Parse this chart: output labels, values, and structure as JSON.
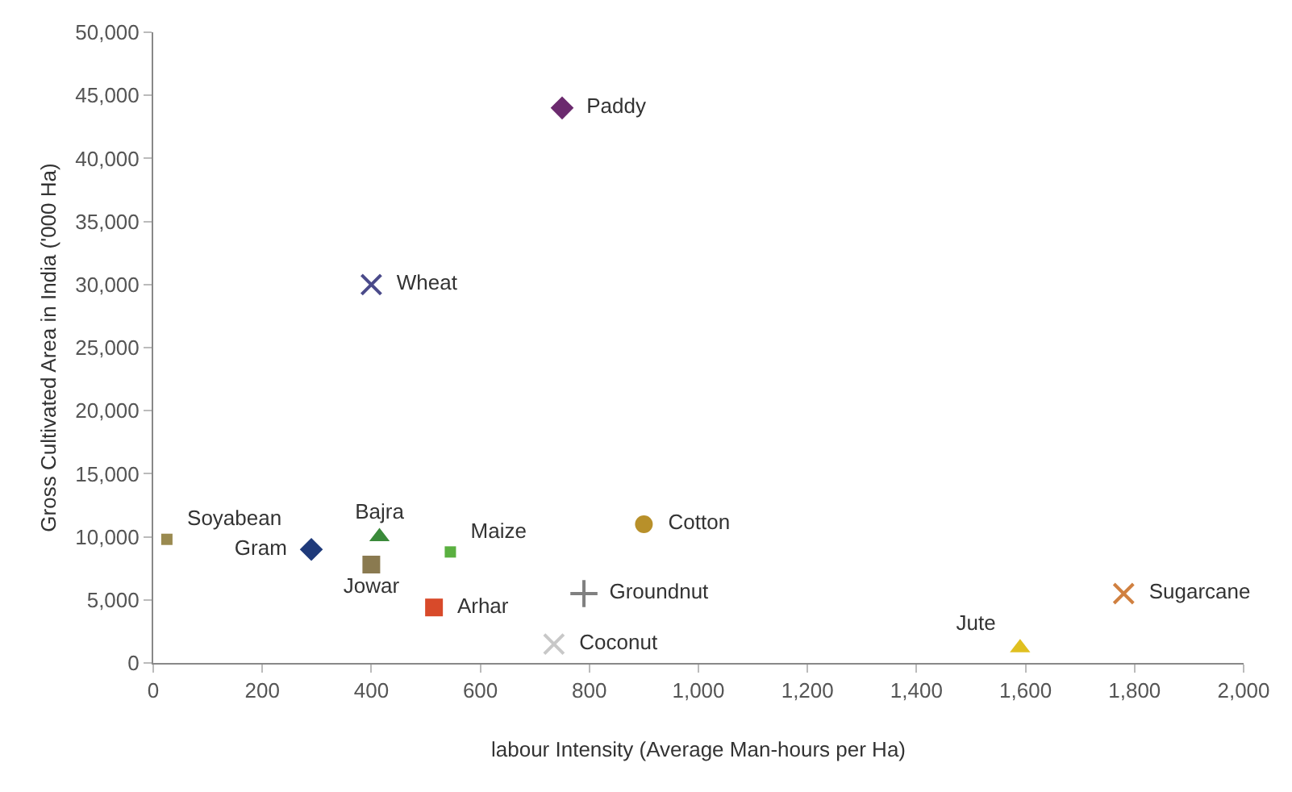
{
  "chart_data": {
    "type": "scatter",
    "xlabel": "labour Intensity (Average Man-hours per Ha)",
    "ylabel": "Gross Cultivated Area in India ('000 Ha)",
    "xlim": [
      0,
      2000
    ],
    "xticks": [
      0,
      {
        "value": 200,
        "label": "200"
      },
      {
        "value": 400,
        "label": "400"
      },
      {
        "value": 600,
        "label": "600"
      },
      {
        "value": 800,
        "label": "800"
      },
      {
        "value": 1000,
        "label": "1,000"
      },
      {
        "value": 1200,
        "label": "1,200"
      },
      {
        "value": 1400,
        "label": "1,400"
      },
      {
        "value": 1600,
        "label": "1,600"
      },
      {
        "value": 1800,
        "label": "1,800"
      },
      {
        "value": 2000,
        "label": "2,000"
      }
    ],
    "ylim": [
      0,
      50000
    ],
    "yticks": [
      0,
      {
        "value": 5000,
        "label": "5,000"
      },
      {
        "value": 10000,
        "label": "10,000"
      },
      {
        "value": 15000,
        "label": "15,000"
      },
      {
        "value": 20000,
        "label": "20,000"
      },
      {
        "value": 25000,
        "label": "25,000"
      },
      {
        "value": 30000,
        "label": "30,000"
      },
      {
        "value": 35000,
        "label": "35,000"
      },
      {
        "value": 40000,
        "label": "40,000"
      },
      {
        "value": 45000,
        "label": "45,000"
      },
      {
        "value": 50000,
        "label": "50,000"
      }
    ],
    "legend": false,
    "series": [
      {
        "name": "Paddy",
        "color": "#6b2a6e",
        "marker": "diamond",
        "x": [
          750
        ],
        "values": [
          44000
        ]
      },
      {
        "name": "Wheat",
        "color": "#4a4a8a",
        "marker": "x",
        "x": [
          400
        ],
        "values": [
          30000
        ]
      },
      {
        "name": "Soyabean",
        "color": "#9a8a50",
        "marker": "square",
        "x": [
          25
        ],
        "values": [
          9800
        ]
      },
      {
        "name": "Gram",
        "color": "#1f3a7a",
        "marker": "diamond",
        "x": [
          290
        ],
        "values": [
          9000
        ]
      },
      {
        "name": "Jowar",
        "color": "#8a7a50",
        "marker": "square",
        "x": [
          400
        ],
        "values": [
          7800
        ]
      },
      {
        "name": "Bajra",
        "color": "#3a8a3a",
        "marker": "triangle",
        "x": [
          415
        ],
        "values": [
          10000
        ]
      },
      {
        "name": "Maize",
        "color": "#5ab040",
        "marker": "square",
        "x": [
          545
        ],
        "values": [
          8800
        ]
      },
      {
        "name": "Arhar",
        "color": "#d84a2a",
        "marker": "square",
        "x": [
          515
        ],
        "values": [
          4400
        ]
      },
      {
        "name": "Coconut",
        "color": "#c8c8c8",
        "marker": "x",
        "x": [
          735
        ],
        "values": [
          1500
        ]
      },
      {
        "name": "Groundnut",
        "color": "#808080",
        "marker": "cross",
        "x": [
          790
        ],
        "values": [
          5500
        ]
      },
      {
        "name": "Cotton",
        "color": "#b8902a",
        "marker": "circle",
        "x": [
          900
        ],
        "values": [
          11000
        ]
      },
      {
        "name": "Sugarcane",
        "color": "#d08040",
        "marker": "x",
        "x": [
          1780
        ],
        "values": [
          5500
        ]
      },
      {
        "name": "Jute",
        "color": "#e0c020",
        "marker": "triangle",
        "x": [
          1590
        ],
        "values": [
          1200
        ]
      }
    ]
  }
}
